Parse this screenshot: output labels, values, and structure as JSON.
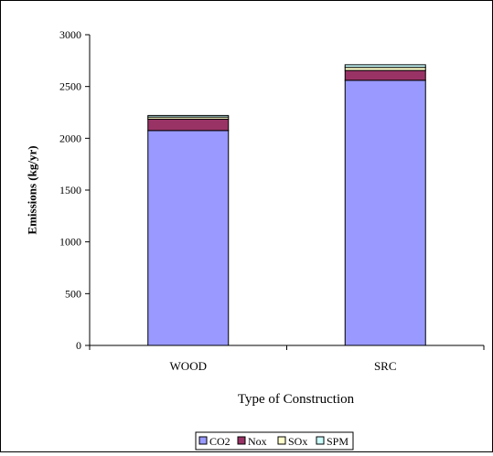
{
  "chart_data": {
    "type": "bar",
    "stacked": true,
    "title": "",
    "xlabel": "Type of Construction",
    "ylabel": "Emissions (kg/yr)",
    "ylim": [
      0,
      3000
    ],
    "yticks": [
      0,
      500,
      1000,
      1500,
      2000,
      2500,
      3000
    ],
    "grid": false,
    "legend_position": "bottom",
    "categories": [
      "WOOD",
      "SRC"
    ],
    "series": [
      {
        "name": "CO2",
        "values": [
          2075,
          2560
        ],
        "color": "#9999ff"
      },
      {
        "name": "Nox",
        "values": [
          110,
          95
        ],
        "color": "#993366"
      },
      {
        "name": "SOx",
        "values": [
          20,
          30
        ],
        "color": "#ffffcc"
      },
      {
        "name": "SPM",
        "values": [
          15,
          25
        ],
        "color": "#ccffff"
      }
    ]
  }
}
